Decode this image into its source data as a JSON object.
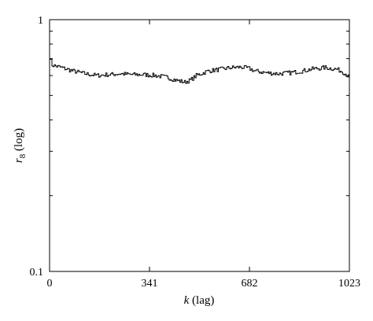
{
  "chart_data": {
    "type": "line",
    "title": "",
    "xlabel": {
      "var": "k",
      "unit": " (lag)"
    },
    "ylabel": {
      "var": "r",
      "sub": "8",
      "unit": " (log)"
    },
    "xlim": [
      0,
      1023
    ],
    "ylim": [
      0.1,
      1
    ],
    "yscale": "log",
    "grid": false,
    "legend": "none",
    "line_style": "step",
    "line_color": "#000000",
    "xticks": [
      {
        "value": 0,
        "label": "0"
      },
      {
        "value": 341,
        "label": "341"
      },
      {
        "value": 682,
        "label": "682"
      },
      {
        "value": 1023,
        "label": "1023"
      }
    ],
    "yticks": [
      {
        "value": 1,
        "label": "1"
      },
      {
        "value": 0.1,
        "label": "0.1"
      }
    ],
    "series": [
      {
        "x": [
          0,
          8,
          40,
          80,
          120,
          160,
          200,
          240,
          280,
          320,
          360,
          400,
          430,
          460,
          480,
          500,
          540,
          580,
          620,
          650,
          680,
          700,
          740,
          780,
          820,
          860,
          900,
          940,
          980,
          1000,
          1023
        ],
        "y": [
          0.71,
          0.66,
          0.645,
          0.625,
          0.61,
          0.6,
          0.605,
          0.61,
          0.605,
          0.605,
          0.6,
          0.59,
          0.575,
          0.565,
          0.575,
          0.6,
          0.625,
          0.635,
          0.645,
          0.648,
          0.64,
          0.625,
          0.615,
          0.61,
          0.615,
          0.625,
          0.638,
          0.645,
          0.635,
          0.62,
          0.59
        ]
      }
    ]
  }
}
